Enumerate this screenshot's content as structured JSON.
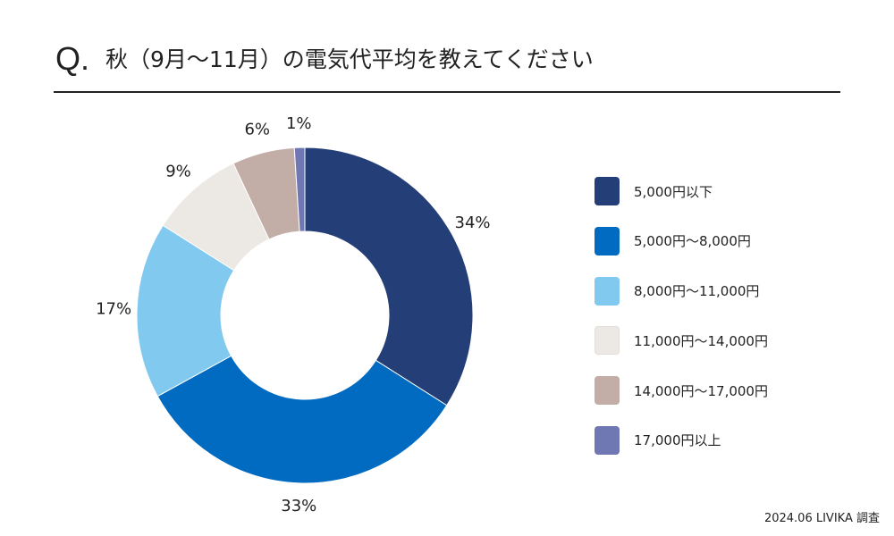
{
  "header": {
    "q_mark": "Q.",
    "title": "秋（9月〜11月）の電気代平均を教えてください"
  },
  "chart_data": {
    "type": "pie",
    "donut": true,
    "title": "秋（9月〜11月）の電気代平均を教えてください",
    "categories": [
      "5,000円以下",
      "5,000円〜8,000円",
      "8,000円〜11,000円",
      "11,000円〜14,000円",
      "14,000円〜17,000円",
      "17,000円以上"
    ],
    "values": [
      34,
      33,
      17,
      9,
      6,
      1
    ],
    "value_labels": [
      "34%",
      "33%",
      "17%",
      "9%",
      "6%",
      "1%"
    ],
    "unit": "%",
    "colors": [
      "#243F77",
      "#006BC1",
      "#82C9EF",
      "#ECE8E4",
      "#C2AEA6",
      "#6F78B2"
    ],
    "legend_position": "right",
    "start_angle_deg": 0,
    "direction": "clockwise"
  },
  "footer": {
    "source": "2024.06 LIVIKA 調査"
  }
}
